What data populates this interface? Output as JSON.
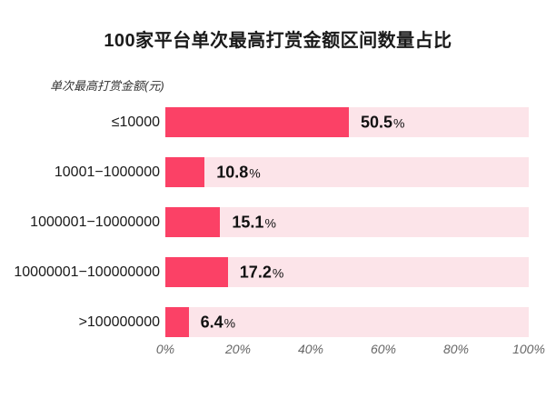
{
  "title": "100家平台单次最高打赏金额区间数量占比",
  "axis_unit_label": "单次最高打赏金额(元)",
  "colors": {
    "bar": "#fb4166",
    "track": "#fce4e9",
    "title_text": "#1a1a1a",
    "axis_text": "#666666",
    "background": "#ffffff"
  },
  "chart_data": {
    "type": "bar",
    "orientation": "horizontal",
    "title": "100家平台单次最高打赏金额区间数量占比",
    "axis_unit_label": "单次最高打赏金额(元)",
    "categories": [
      "≤10000",
      "10001−1000000",
      "1000001−10000000",
      "10000001−100000000",
      ">100000000"
    ],
    "values": [
      50.5,
      10.8,
      15.1,
      17.2,
      6.4
    ],
    "value_labels": [
      "50.5%",
      "10.8%",
      "15.1%",
      "17.2%",
      "6.4%"
    ],
    "unit": "%",
    "xlim": [
      0,
      100
    ],
    "x_ticks": [
      "0%",
      "20%",
      "40%",
      "60%",
      "80%",
      "100%"
    ],
    "grid": false,
    "legend": false
  }
}
